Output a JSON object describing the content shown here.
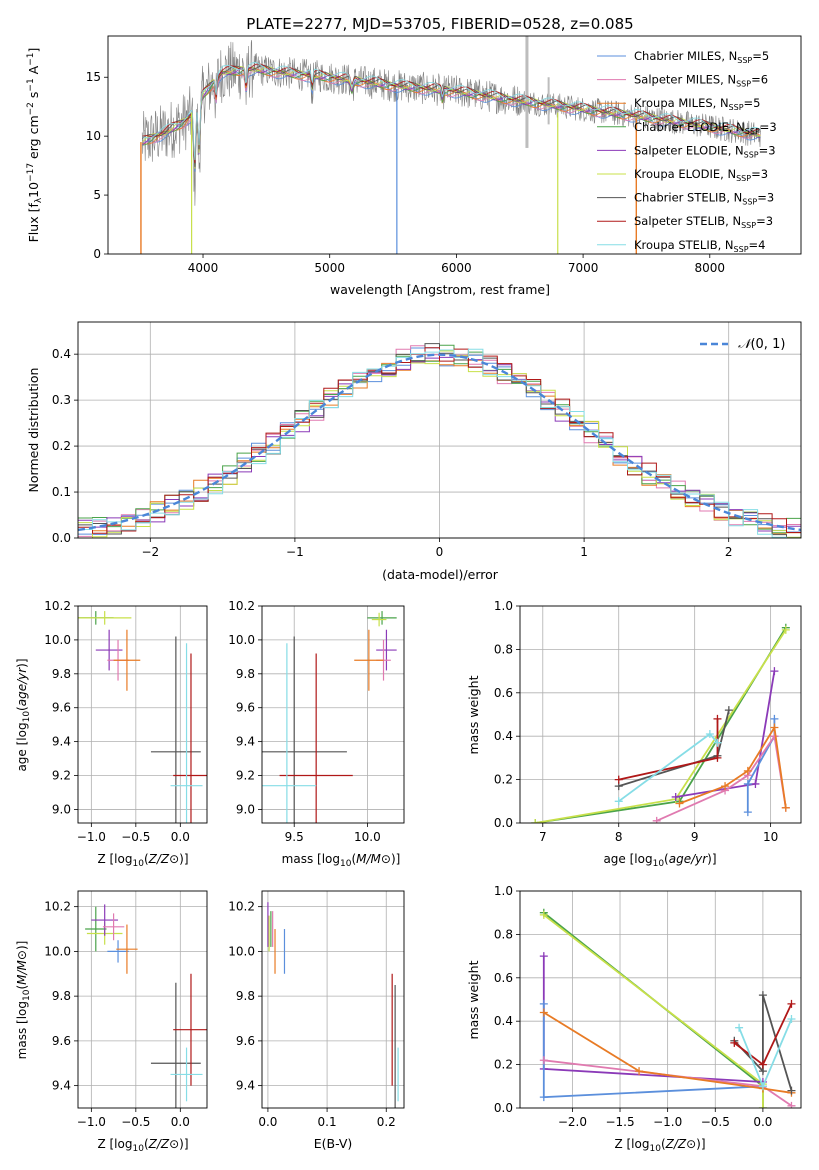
{
  "title": "PLATE=2277, MJD=53705, FIBERID=0528, z=0.085",
  "colors": {
    "Chabrier MILES": "#5b8fdc",
    "Salpeter MILES": "#e07ab0",
    "Kroupa MILES": "#e87b25",
    "Chabrier ELODIE": "#4aa34a",
    "Salpeter ELODIE": "#8b3ab8",
    "Kroupa ELODIE": "#c8e04a",
    "Chabrier STELIB": "#555555",
    "Salpeter STELIB": "#b01818",
    "Kroupa STELIB": "#86dde6",
    "data": "#808080"
  },
  "chart_data": [
    {
      "type": "line",
      "xlabel": "wavelength [Angstrom, rest frame]",
      "ylabel": "Flux [fλ10⁻¹⁷ erg cm⁻² s⁻¹ A⁻¹]",
      "xlim": [
        3250,
        8720
      ],
      "ylim": [
        0,
        18.5
      ],
      "xticks": [
        4000,
        5000,
        6000,
        7000,
        8000
      ],
      "yticks": [
        0,
        5,
        10,
        15
      ],
      "legend": [
        {
          "label": "Chabrier MILES, N",
          "sub": "SSP",
          "n": "=5",
          "color": "#5b8fdc"
        },
        {
          "label": "Salpeter MILES, N",
          "sub": "SSP",
          "n": "=6",
          "color": "#e07ab0"
        },
        {
          "label": "Kroupa MILES, N",
          "sub": "SSP",
          "n": "=5",
          "color": "#e87b25"
        },
        {
          "label": "Chabrier ELODIE, N",
          "sub": "SSP",
          "n": "=3",
          "color": "#4aa34a"
        },
        {
          "label": "Salpeter ELODIE, N",
          "sub": "SSP",
          "n": "=3",
          "color": "#8b3ab8"
        },
        {
          "label": "Kroupa ELODIE, N",
          "sub": "SSP",
          "n": "=3",
          "color": "#c8e04a"
        },
        {
          "label": "Chabrier STELIB, N",
          "sub": "SSP",
          "n": "=3",
          "color": "#555555"
        },
        {
          "label": "Salpeter STELIB, N",
          "sub": "SSP",
          "n": "=3",
          "color": "#b01818"
        },
        {
          "label": "Kroupa STELIB, N",
          "sub": "SSP",
          "n": "=4",
          "color": "#86dde6"
        }
      ],
      "continuum": [
        [
          3520,
          9.5
        ],
        [
          3700,
          10.3
        ],
        [
          3850,
          11.2
        ],
        [
          3950,
          12.2
        ],
        [
          4000,
          13.5
        ],
        [
          4150,
          15.4
        ],
        [
          4400,
          15.7
        ],
        [
          4700,
          15.3
        ],
        [
          5000,
          15.0
        ],
        [
          5500,
          14.3
        ],
        [
          6000,
          13.8
        ],
        [
          6500,
          13.0
        ],
        [
          7000,
          12.3
        ],
        [
          7500,
          11.6
        ],
        [
          8000,
          10.8
        ],
        [
          8400,
          10.1
        ]
      ]
    },
    {
      "type": "histogram",
      "xlabel": "(data-model)/error",
      "ylabel": "Normed distribution",
      "xlim": [
        -2.5,
        2.5
      ],
      "ylim": [
        0,
        0.47
      ],
      "xticks": [
        -2,
        -1,
        0,
        1,
        2
      ],
      "yticks": [
        0.0,
        0.1,
        0.2,
        0.3,
        0.4
      ],
      "legend": "N(0, 1)",
      "reference": {
        "name": "N(0,1)",
        "mean": 0,
        "sigma": 1
      },
      "bin_width": 0.1
    },
    {
      "type": "scatter",
      "xlabel": "Z [log10(Z/Z⊙)]",
      "ylabel": "age  [log10(age/yr)]",
      "xlim": [
        -1.15,
        0.3
      ],
      "ylim": [
        8.92,
        10.2
      ],
      "xticks": [
        -1.0,
        -0.5,
        0.0
      ],
      "yticks": [
        9.0,
        9.2,
        9.4,
        9.6,
        9.8,
        10.0,
        10.2
      ],
      "points": [
        {
          "model": "Chabrier ELODIE",
          "x": -0.95,
          "y": 10.13,
          "xerr": 0.2,
          "yerr": 0.04
        },
        {
          "model": "Kroupa ELODIE",
          "x": -0.85,
          "y": 10.13,
          "xerr": 0.3,
          "yerr": 0.04
        },
        {
          "model": "Salpeter ELODIE",
          "x": -0.8,
          "y": 9.94,
          "xerr": 0.15,
          "yerr": 0.12
        },
        {
          "model": "Salpeter MILES",
          "x": -0.7,
          "y": 9.88,
          "xerr": 0.12,
          "yerr": 0.12
        },
        {
          "model": "Kroupa MILES",
          "x": -0.6,
          "y": 9.88,
          "xerr": 0.15,
          "yerr": 0.18
        },
        {
          "model": "Chabrier STELIB",
          "x": -0.05,
          "y": 9.34,
          "xerr": 0.28,
          "yerr": 0.68
        },
        {
          "model": "Salpeter STELIB",
          "x": 0.12,
          "y": 9.2,
          "xerr": 0.2,
          "yerr": 0.72
        },
        {
          "model": "Kroupa STELIB",
          "x": 0.07,
          "y": 9.14,
          "xerr": 0.18,
          "yerr": 0.84
        }
      ]
    },
    {
      "type": "scatter",
      "xlabel": "mass [log10(M/M⊙)]",
      "ylabel": "",
      "xlim": [
        9.28,
        10.25
      ],
      "ylim": [
        8.92,
        10.2
      ],
      "xticks": [
        9.5,
        10.0
      ],
      "yticks": [
        9.0,
        9.2,
        9.4,
        9.6,
        9.8,
        10.0,
        10.2
      ],
      "points": [
        {
          "model": "Chabrier ELODIE",
          "x": 10.1,
          "y": 10.13,
          "xerr": 0.1,
          "yerr": 0.04
        },
        {
          "model": "Kroupa ELODIE",
          "x": 10.08,
          "y": 10.12,
          "xerr": 0.05,
          "yerr": 0.04
        },
        {
          "model": "Salpeter ELODIE",
          "x": 10.13,
          "y": 9.94,
          "xerr": 0.07,
          "yerr": 0.12
        },
        {
          "model": "Salpeter MILES",
          "x": 10.11,
          "y": 9.88,
          "xerr": 0.05,
          "yerr": 0.12
        },
        {
          "model": "Kroupa MILES",
          "x": 10.01,
          "y": 9.88,
          "xerr": 0.1,
          "yerr": 0.18
        },
        {
          "model": "Chabrier STELIB",
          "x": 9.5,
          "y": 9.34,
          "xerr": 0.36,
          "yerr": 0.68
        },
        {
          "model": "Salpeter STELIB",
          "x": 9.65,
          "y": 9.2,
          "xerr": 0.25,
          "yerr": 0.72
        },
        {
          "model": "Kroupa STELIB",
          "x": 9.45,
          "y": 9.14,
          "xerr": 0.2,
          "yerr": 0.84
        }
      ]
    },
    {
      "type": "line",
      "xlabel": "age  [log10(age/yr)]",
      "ylabel": "mass weight",
      "xlim": [
        6.7,
        10.4
      ],
      "ylim": [
        0,
        1.0
      ],
      "xticks": [
        7,
        8,
        9,
        10
      ],
      "yticks": [
        0.0,
        0.2,
        0.4,
        0.6,
        0.8,
        1.0
      ],
      "series": [
        {
          "model": "Chabrier ELODIE",
          "x": [
            6.9,
            8.8,
            10.2
          ],
          "y": [
            0.0,
            0.1,
            0.9
          ]
        },
        {
          "model": "Kroupa ELODIE",
          "x": [
            6.9,
            8.75,
            10.2
          ],
          "y": [
            0.0,
            0.11,
            0.89
          ]
        },
        {
          "model": "Salpeter ELODIE",
          "x": [
            8.75,
            9.8,
            10.05
          ],
          "y": [
            0.12,
            0.18,
            0.7
          ]
        },
        {
          "model": "Chabrier MILES",
          "x": [
            9.7,
            9.7,
            10.05,
            10.05
          ],
          "y": [
            0.05,
            0.18,
            0.4,
            0.48
          ]
        },
        {
          "model": "Salpeter MILES",
          "x": [
            8.5,
            9.4,
            9.7,
            10.05,
            10.2
          ],
          "y": [
            0.01,
            0.15,
            0.22,
            0.4,
            0.07
          ]
        },
        {
          "model": "Kroupa MILES",
          "x": [
            8.8,
            9.4,
            9.7,
            10.05,
            10.2
          ],
          "y": [
            0.09,
            0.17,
            0.24,
            0.44,
            0.07
          ]
        },
        {
          "model": "Chabrier STELIB",
          "x": [
            8.0,
            9.3,
            9.45
          ],
          "y": [
            0.17,
            0.31,
            0.52
          ]
        },
        {
          "model": "Salpeter STELIB",
          "x": [
            8.0,
            9.3,
            9.3
          ],
          "y": [
            0.2,
            0.3,
            0.48
          ]
        },
        {
          "model": "Kroupa STELIB",
          "x": [
            8.0,
            9.2,
            9.3
          ],
          "y": [
            0.1,
            0.41,
            0.37
          ]
        }
      ]
    },
    {
      "type": "scatter",
      "xlabel": "Z [log10(Z/Z⊙)]",
      "ylabel": "mass [log10(M/M⊙)]",
      "xlim": [
        -1.15,
        0.3
      ],
      "ylim": [
        9.3,
        10.27
      ],
      "xticks": [
        -1.0,
        -0.5,
        0.0
      ],
      "yticks": [
        9.4,
        9.6,
        9.8,
        10.0,
        10.2
      ],
      "points": [
        {
          "model": "Chabrier ELODIE",
          "x": -0.95,
          "y": 10.1,
          "xerr": 0.12,
          "yerr": 0.1
        },
        {
          "model": "Kroupa ELODIE",
          "x": -0.85,
          "y": 10.08,
          "xerr": 0.2,
          "yerr": 0.05
        },
        {
          "model": "Salpeter ELODIE",
          "x": -0.85,
          "y": 10.14,
          "xerr": 0.15,
          "yerr": 0.07
        },
        {
          "model": "Salpeter MILES",
          "x": -0.75,
          "y": 10.11,
          "xerr": 0.12,
          "yerr": 0.06
        },
        {
          "model": "Chabrier MILES",
          "x": -0.7,
          "y": 10.0,
          "xerr": 0.12,
          "yerr": 0.05
        },
        {
          "model": "Kroupa MILES",
          "x": -0.6,
          "y": 10.01,
          "xerr": 0.12,
          "yerr": 0.11
        },
        {
          "model": "Chabrier STELIB",
          "x": -0.05,
          "y": 9.5,
          "xerr": 0.28,
          "yerr": 0.36
        },
        {
          "model": "Salpeter STELIB",
          "x": 0.12,
          "y": 9.65,
          "xerr": 0.2,
          "yerr": 0.25
        },
        {
          "model": "Kroupa STELIB",
          "x": 0.07,
          "y": 9.45,
          "xerr": 0.18,
          "yerr": 0.12
        }
      ]
    },
    {
      "type": "scatter",
      "xlabel": "E(B-V)",
      "ylabel": "",
      "xlim": [
        -0.01,
        0.23
      ],
      "ylim": [
        9.3,
        10.27
      ],
      "xticks": [
        0.0,
        0.1,
        0.2
      ],
      "yticks": [
        9.4,
        9.6,
        9.8,
        10.0,
        10.2
      ],
      "points": [
        {
          "model": "Salpeter ELODIE",
          "x": 0.0,
          "y": 10.12,
          "xerr": 0,
          "yerr": 0.1
        },
        {
          "model": "Kroupa ELODIE",
          "x": 0.002,
          "y": 10.08,
          "xerr": 0,
          "yerr": 0.08
        },
        {
          "model": "Chabrier ELODIE",
          "x": 0.005,
          "y": 10.1,
          "xerr": 0,
          "yerr": 0.08
        },
        {
          "model": "Salpeter MILES",
          "x": 0.008,
          "y": 10.1,
          "xerr": 0,
          "yerr": 0.08
        },
        {
          "model": "Kroupa MILES",
          "x": 0.012,
          "y": 10.0,
          "xerr": 0,
          "yerr": 0.1
        },
        {
          "model": "Chabrier MILES",
          "x": 0.028,
          "y": 10.0,
          "xerr": 0,
          "yerr": 0.1
        },
        {
          "model": "Salpeter STELIB",
          "x": 0.21,
          "y": 9.65,
          "xerr": 0,
          "yerr": 0.25
        },
        {
          "model": "Chabrier STELIB",
          "x": 0.215,
          "y": 9.55,
          "xerr": 0,
          "yerr": 0.3
        },
        {
          "model": "Kroupa STELIB",
          "x": 0.22,
          "y": 9.45,
          "xerr": 0,
          "yerr": 0.12
        }
      ]
    },
    {
      "type": "line",
      "xlabel": "Z [log10(Z/Z⊙)]",
      "ylabel": "mass weight",
      "xlim": [
        -2.55,
        0.4
      ],
      "ylim": [
        0,
        1.0
      ],
      "xticks": [
        -2.0,
        -1.5,
        -1.0,
        -0.5,
        0.0
      ],
      "yticks": [
        0.0,
        0.2,
        0.4,
        0.6,
        0.8,
        1.0
      ],
      "series": [
        {
          "model": "Chabrier ELODIE",
          "x": [
            -2.3,
            0.0,
            0.0
          ],
          "y": [
            0.9,
            0.1,
            0.0
          ]
        },
        {
          "model": "Kroupa ELODIE",
          "x": [
            -2.3,
            0.0,
            0.0
          ],
          "y": [
            0.89,
            0.11,
            0.0
          ]
        },
        {
          "model": "Salpeter ELODIE",
          "x": [
            -2.3,
            -2.3,
            0.0
          ],
          "y": [
            0.7,
            0.18,
            0.12
          ]
        },
        {
          "model": "Chabrier MILES",
          "x": [
            -2.3,
            -2.3,
            0.0
          ],
          "y": [
            0.48,
            0.05,
            0.1
          ]
        },
        {
          "model": "Salpeter MILES",
          "x": [
            -2.3,
            0.0,
            0.3
          ],
          "y": [
            0.22,
            0.1,
            0.01
          ]
        },
        {
          "model": "Kroupa MILES",
          "x": [
            -2.3,
            -1.3,
            0.0,
            0.3
          ],
          "y": [
            0.44,
            0.17,
            0.09,
            0.07
          ]
        },
        {
          "model": "Chabrier STELIB",
          "x": [
            -0.3,
            0.0,
            0.0,
            0.3
          ],
          "y": [
            0.31,
            0.17,
            0.52,
            0.08
          ]
        },
        {
          "model": "Salpeter STELIB",
          "x": [
            -0.3,
            0.0,
            0.3
          ],
          "y": [
            0.3,
            0.2,
            0.48
          ]
        },
        {
          "model": "Kroupa STELIB",
          "x": [
            -0.25,
            0.0,
            0.3
          ],
          "y": [
            0.37,
            0.1,
            0.41
          ]
        }
      ]
    }
  ]
}
